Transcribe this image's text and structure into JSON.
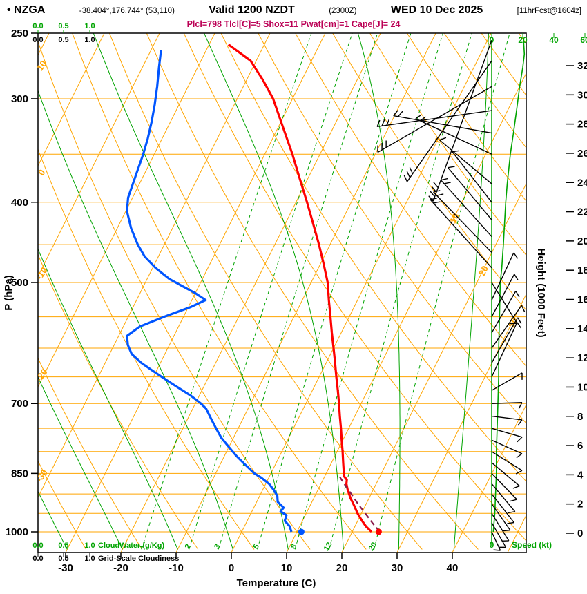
{
  "header": {
    "station": "• NZGA",
    "coords": "-38.404°,176.744° (53,110)",
    "valid_main": "Valid 1200 NZDT",
    "valid_utc": "(2300Z)",
    "valid_date": "WED 10 Dec 2025",
    "fcst_info": "[11hrFcst@1604z]",
    "indices": "Plcl=798 Tlcl[C]=5 Shox=11 Pwat[cm]=1 Cape[J]= 24"
  },
  "axes": {
    "pressure": {
      "label": "P (hPa)",
      "ticks": [
        250,
        300,
        400,
        500,
        700,
        850,
        1000
      ]
    },
    "temperature": {
      "label": "Temperature (C)",
      "ticks": [
        -30,
        -20,
        -10,
        0,
        10,
        20,
        30,
        40
      ]
    },
    "height": {
      "label": "Height (1000 Feet)",
      "min": 0,
      "max": 32,
      "step": 2
    },
    "speed": {
      "label": "Speed (kt)",
      "ticks": [
        "0",
        "20",
        "40",
        "60"
      ],
      "zero_label": "0"
    },
    "cloudwater": {
      "label": "CloudWater (g/Kg)",
      "scale": [
        "0.0",
        "0.5",
        "1.0"
      ]
    },
    "cloudiness": {
      "label": "Grid-Scale Cloudiness",
      "scale": [
        "0.0",
        "0.5",
        "1.0"
      ]
    }
  },
  "colors": {
    "grid": "#FFA500",
    "green": "#00A400",
    "temp": "#FF0000",
    "dew": "#0055FF",
    "parcel": "#8B1A4B",
    "indices": "#BB0055",
    "frame": "#000000"
  },
  "chart_data": {
    "type": "line",
    "subtype": "skew-t-log-p",
    "title": "NZGA sounding valid 1200 NZDT (2300Z) WED 10 Dec 2025, 11hr forecast",
    "pressure_range_hpa": [
      250,
      1050
    ],
    "grid": {
      "isobars_hpa": [
        300,
        350,
        400,
        450,
        500,
        550,
        600,
        650,
        700,
        750,
        800,
        850,
        900,
        950,
        1000
      ],
      "isotherms_c": {
        "min": -80,
        "max": 50,
        "step": 10
      },
      "dry_adiabats_c": {
        "min": -40,
        "max": 150,
        "step": 10
      },
      "dry_adiabat_labels": [
        10,
        0,
        -10,
        -20,
        -30
      ],
      "isotherm_labels": [
        0,
        10,
        20,
        30
      ],
      "moist_adiabats_c": [
        -30,
        -20,
        -10,
        0,
        10,
        20,
        30,
        40
      ],
      "mixing_ratio_gkg": [
        1,
        2,
        3,
        5,
        8,
        12,
        20
      ]
    },
    "temperature_curve": [
      [
        1000,
        23.5
      ],
      [
        985,
        22.0
      ],
      [
        970,
        20.8
      ],
      [
        950,
        19.3
      ],
      [
        930,
        18.0
      ],
      [
        910,
        16.6
      ],
      [
        890,
        15.4
      ],
      [
        875,
        14.6
      ],
      [
        865,
        14.3
      ],
      [
        858,
        13.6
      ],
      [
        850,
        13.2
      ],
      [
        825,
        12.1
      ],
      [
        800,
        11.0
      ],
      [
        775,
        9.8
      ],
      [
        750,
        8.6
      ],
      [
        725,
        7.3
      ],
      [
        700,
        6.0
      ],
      [
        675,
        4.6
      ],
      [
        650,
        3.1
      ],
      [
        625,
        1.6
      ],
      [
        600,
        0.0
      ],
      [
        575,
        -1.7
      ],
      [
        550,
        -3.4
      ],
      [
        525,
        -5.2
      ],
      [
        500,
        -7.0
      ],
      [
        475,
        -9.4
      ],
      [
        450,
        -12.0
      ],
      [
        425,
        -14.9
      ],
      [
        400,
        -18.0
      ],
      [
        375,
        -21.4
      ],
      [
        350,
        -25.0
      ],
      [
        325,
        -29.1
      ],
      [
        300,
        -33.5
      ],
      [
        285,
        -37.0
      ],
      [
        270,
        -41.0
      ],
      [
        258,
        -46.5
      ]
    ],
    "dewpoint_curve": [
      [
        1000,
        9.0
      ],
      [
        985,
        8.2
      ],
      [
        970,
        6.8
      ],
      [
        955,
        6.6
      ],
      [
        945,
        5.2
      ],
      [
        935,
        5.4
      ],
      [
        920,
        3.8
      ],
      [
        905,
        3.2
      ],
      [
        890,
        2.0
      ],
      [
        875,
        0.6
      ],
      [
        860,
        -1.4
      ],
      [
        850,
        -3.0
      ],
      [
        830,
        -5.4
      ],
      [
        810,
        -7.8
      ],
      [
        790,
        -10.0
      ],
      [
        770,
        -12.2
      ],
      [
        750,
        -14.0
      ],
      [
        730,
        -15.8
      ],
      [
        710,
        -17.6
      ],
      [
        700,
        -19.0
      ],
      [
        685,
        -21.5
      ],
      [
        670,
        -24.5
      ],
      [
        655,
        -27.5
      ],
      [
        640,
        -30.5
      ],
      [
        625,
        -33.5
      ],
      [
        610,
        -36.0
      ],
      [
        595,
        -37.5
      ],
      [
        580,
        -38.5
      ],
      [
        565,
        -37.0
      ],
      [
        550,
        -33.5
      ],
      [
        535,
        -29.5
      ],
      [
        525,
        -27.5
      ],
      [
        515,
        -30.0
      ],
      [
        505,
        -33.0
      ],
      [
        495,
        -36.0
      ],
      [
        480,
        -39.5
      ],
      [
        465,
        -42.5
      ],
      [
        450,
        -44.8
      ],
      [
        430,
        -47.5
      ],
      [
        410,
        -49.8
      ],
      [
        395,
        -50.8
      ],
      [
        380,
        -51.2
      ],
      [
        365,
        -51.6
      ],
      [
        350,
        -52.0
      ],
      [
        335,
        -52.6
      ],
      [
        320,
        -53.4
      ],
      [
        305,
        -54.4
      ],
      [
        290,
        -55.6
      ],
      [
        275,
        -57.0
      ],
      [
        262,
        -58.2
      ]
    ],
    "parcel_curve": [
      [
        1000,
        25.0
      ],
      [
        975,
        22.8
      ],
      [
        950,
        20.7
      ],
      [
        925,
        18.5
      ],
      [
        900,
        16.4
      ],
      [
        875,
        14.2
      ],
      [
        855,
        12.5
      ]
    ],
    "surface": {
      "pressure": 1000,
      "temperature_c": 24.8,
      "dewpoint_c": 10.8
    },
    "wind_profile_kt": [
      [
        1000,
        1
      ],
      [
        950,
        2
      ],
      [
        900,
        2.5
      ],
      [
        850,
        3
      ],
      [
        800,
        3
      ],
      [
        750,
        3.5
      ],
      [
        700,
        4
      ],
      [
        650,
        4.5
      ],
      [
        600,
        4.5
      ],
      [
        550,
        5
      ],
      [
        500,
        5.5
      ],
      [
        480,
        6.5
      ],
      [
        450,
        7.5
      ],
      [
        400,
        9
      ],
      [
        380,
        10
      ],
      [
        350,
        12
      ],
      [
        330,
        14
      ],
      [
        310,
        16
      ],
      [
        290,
        18
      ],
      [
        275,
        20
      ],
      [
        265,
        21
      ],
      [
        255,
        20.5
      ]
    ],
    "wind_barbs": [
      [
        1000,
        155,
        2
      ],
      [
        975,
        150,
        2
      ],
      [
        950,
        148,
        2.5
      ],
      [
        925,
        145,
        2.5
      ],
      [
        900,
        142,
        3
      ],
      [
        875,
        140,
        3
      ],
      [
        850,
        136,
        3
      ],
      [
        825,
        130,
        3
      ],
      [
        800,
        122,
        3
      ],
      [
        775,
        114,
        3
      ],
      [
        750,
        106,
        3.5
      ],
      [
        725,
        97,
        3.5
      ],
      [
        700,
        88,
        4
      ],
      [
        675,
        60,
        4.5
      ],
      [
        650,
        25,
        6
      ],
      [
        625,
        30,
        5
      ],
      [
        600,
        35,
        5
      ],
      [
        575,
        30,
        4.5
      ],
      [
        550,
        28,
        4.5
      ],
      [
        525,
        25,
        5
      ],
      [
        500,
        148,
        4.5
      ],
      [
        480,
        318,
        10
      ],
      [
        460,
        316,
        9
      ],
      [
        440,
        318,
        8
      ],
      [
        420,
        320,
        7
      ],
      [
        400,
        322,
        6.5
      ],
      [
        380,
        310,
        7
      ],
      [
        350,
        295,
        9
      ],
      [
        330,
        280,
        11
      ],
      [
        310,
        262,
        13
      ],
      [
        290,
        240,
        15
      ],
      [
        270,
        215,
        17
      ],
      [
        255,
        200,
        20
      ]
    ]
  }
}
